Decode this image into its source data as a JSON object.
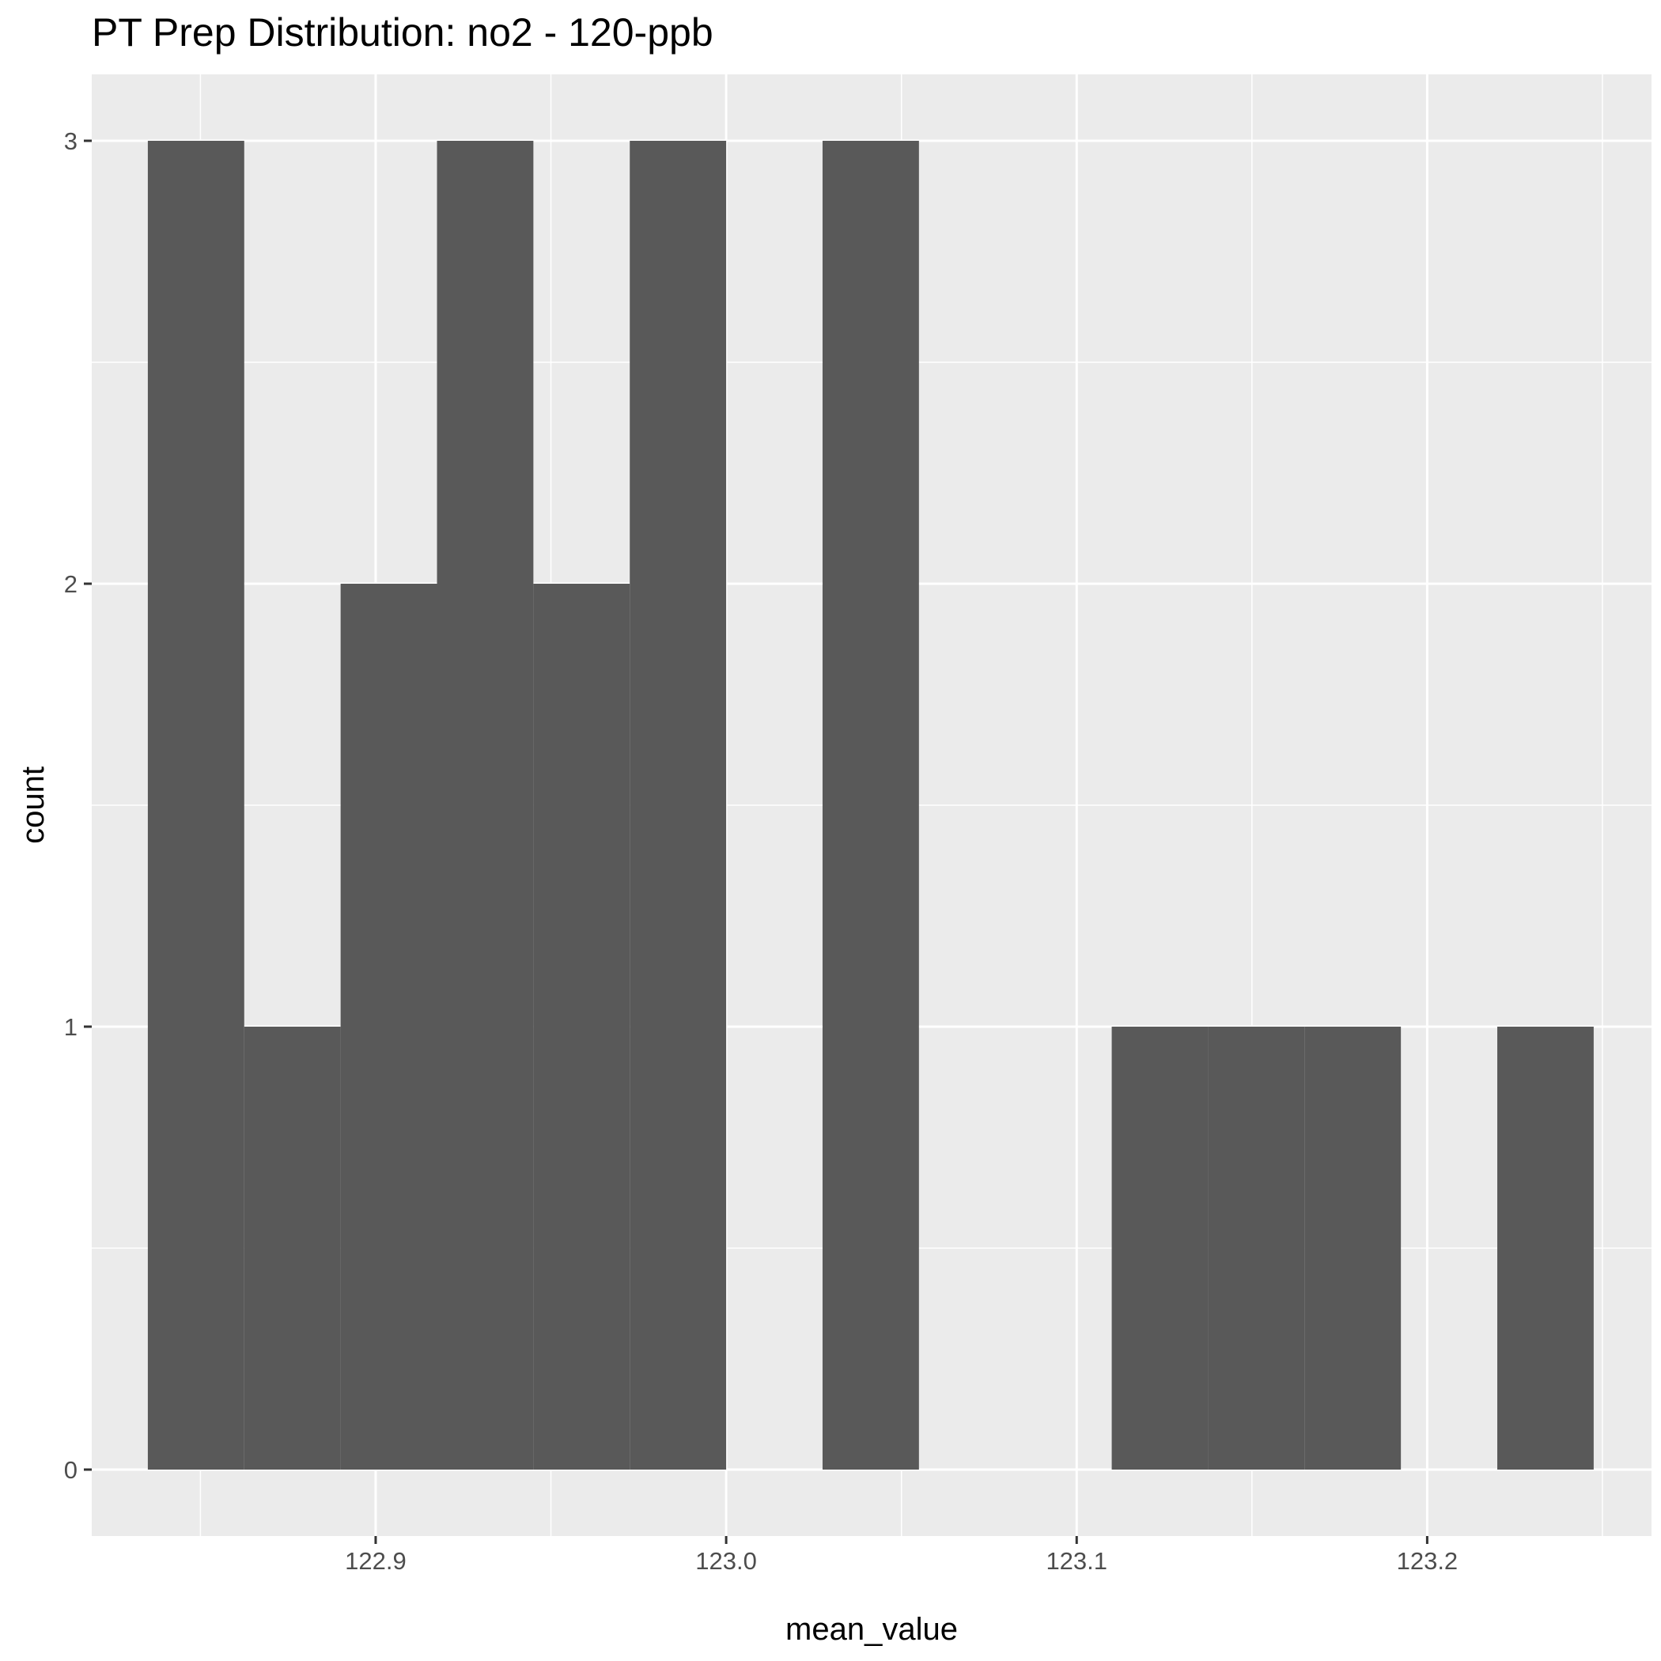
{
  "chart_data": {
    "type": "bar",
    "title": "PT Prep Distribution: no2 - 120-ppb",
    "xlabel": "mean_value",
    "ylabel": "count",
    "bin_width": 0.0275,
    "bins": [
      {
        "start": 122.835,
        "end": 122.8625,
        "count": 3
      },
      {
        "start": 122.8625,
        "end": 122.89,
        "count": 1
      },
      {
        "start": 122.89,
        "end": 122.9175,
        "count": 2
      },
      {
        "start": 122.9175,
        "end": 122.945,
        "count": 3
      },
      {
        "start": 122.945,
        "end": 122.9725,
        "count": 2
      },
      {
        "start": 122.9725,
        "end": 123.0,
        "count": 3
      },
      {
        "start": 123.0,
        "end": 123.0275,
        "count": 0
      },
      {
        "start": 123.0275,
        "end": 123.055,
        "count": 3
      },
      {
        "start": 123.055,
        "end": 123.0825,
        "count": 0
      },
      {
        "start": 123.0825,
        "end": 123.11,
        "count": 0
      },
      {
        "start": 123.11,
        "end": 123.1375,
        "count": 1
      },
      {
        "start": 123.1375,
        "end": 123.165,
        "count": 1
      },
      {
        "start": 123.165,
        "end": 123.1925,
        "count": 1
      },
      {
        "start": 123.1925,
        "end": 123.22,
        "count": 0
      },
      {
        "start": 123.22,
        "end": 123.2475,
        "count": 1
      }
    ],
    "xlim": [
      122.819,
      123.264
    ],
    "ylim": [
      -0.15,
      3.15
    ],
    "x_ticks": [
      {
        "value": 122.9,
        "label": "122.9"
      },
      {
        "value": 123.0,
        "label": "123.0"
      },
      {
        "value": 123.1,
        "label": "123.1"
      },
      {
        "value": 123.2,
        "label": "123.2"
      }
    ],
    "y_ticks": [
      {
        "value": 0,
        "label": "0"
      },
      {
        "value": 1,
        "label": "1"
      },
      {
        "value": 2,
        "label": "2"
      },
      {
        "value": 3,
        "label": "3"
      }
    ],
    "grid": true,
    "colors": {
      "panel": "#EBEBEB",
      "grid": "#FFFFFF",
      "bar": "#595959",
      "tick_text": "#4D4D4D",
      "tick_mark": "#333333"
    }
  }
}
